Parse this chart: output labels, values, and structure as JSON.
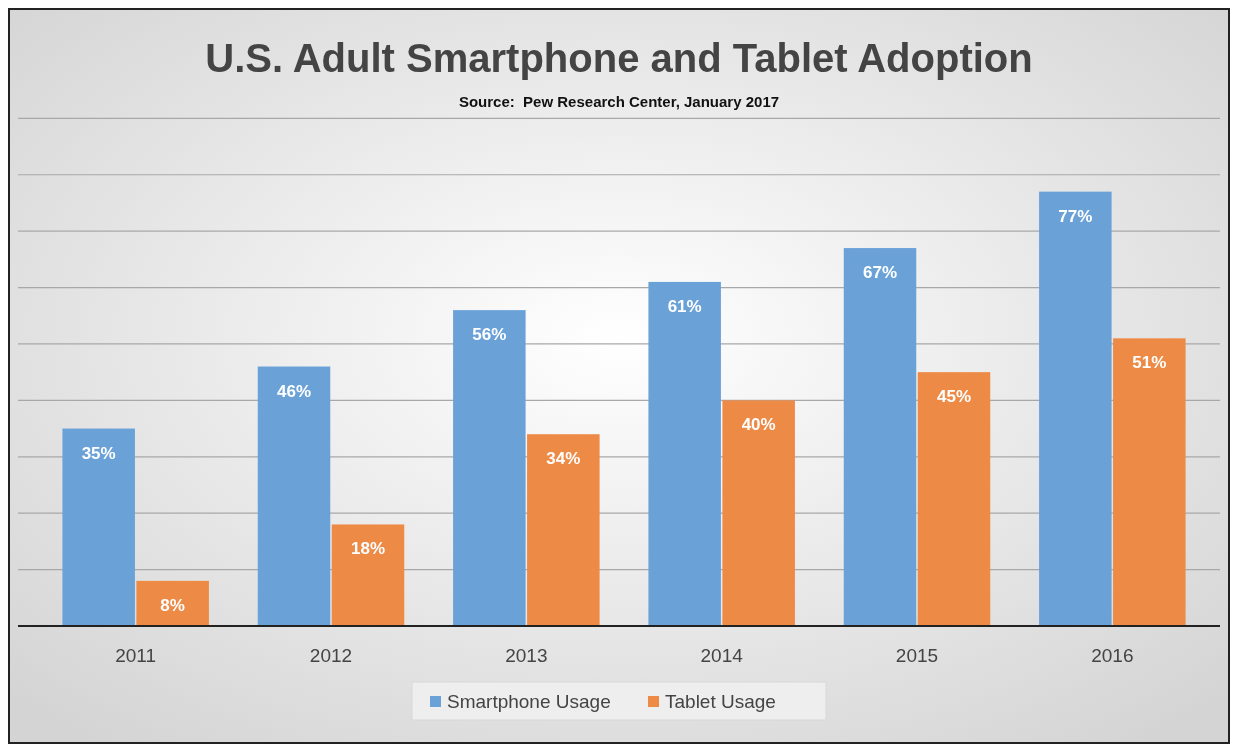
{
  "chart_data": {
    "type": "bar",
    "title": "U.S. Adult Smartphone and Tablet Adoption",
    "annotations": [
      "Source:  Pew Research Center, January 2017"
    ],
    "categories": [
      "2011",
      "2012",
      "2013",
      "2014",
      "2015",
      "2016"
    ],
    "series": [
      {
        "name": "Smartphone Usage",
        "color": "#6aa2d8",
        "values": [
          35,
          46,
          56,
          61,
          67,
          77
        ],
        "value_labels": [
          "35%",
          "46%",
          "56%",
          "61%",
          "67%",
          "77%"
        ]
      },
      {
        "name": "Tablet Usage",
        "color": "#ed8a46",
        "values": [
          8,
          18,
          34,
          40,
          45,
          51
        ],
        "value_labels": [
          "8%",
          "18%",
          "34%",
          "40%",
          "45%",
          "51%"
        ]
      }
    ],
    "tick_labels": "x",
    "grid": "y",
    "legend": "bottom"
  }
}
